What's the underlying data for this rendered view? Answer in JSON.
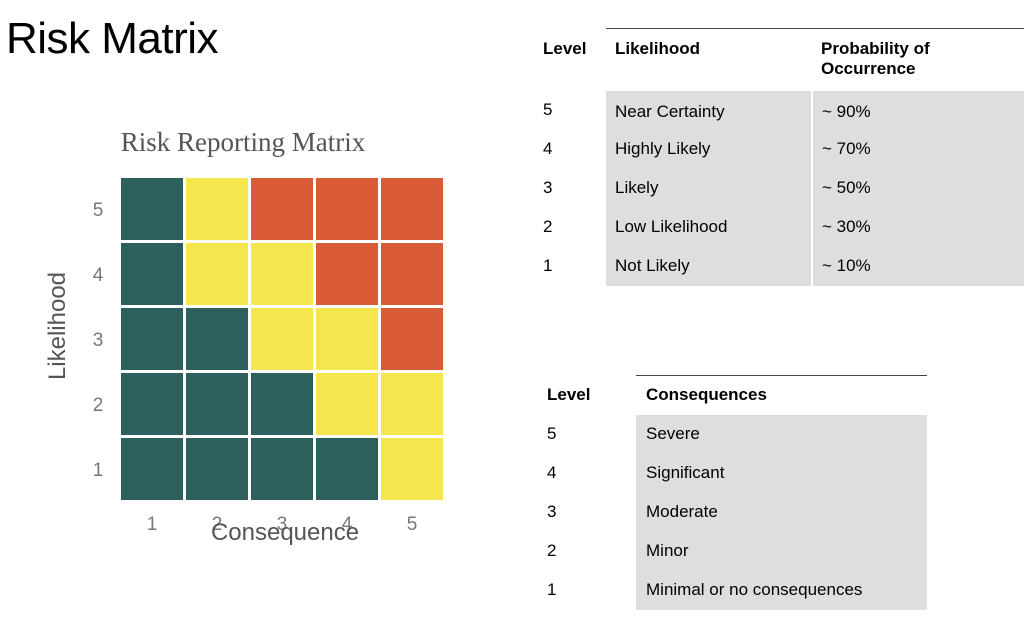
{
  "page": {
    "title": "Risk Matrix"
  },
  "chart_data": {
    "type": "heatmap",
    "title": "Risk Reporting Matrix",
    "xlabel": "Consequence",
    "ylabel": "Likelihood",
    "x_ticks": [
      "1",
      "2",
      "3",
      "4",
      "5"
    ],
    "y_ticks": [
      "1",
      "2",
      "3",
      "4",
      "5"
    ],
    "colors": {
      "green": "#2d5f5d",
      "yellow": "#f5e64e",
      "red": "#d95b35"
    },
    "cells": [
      {
        "likelihood": 5,
        "values": [
          "green",
          "yellow",
          "red",
          "red",
          "red"
        ]
      },
      {
        "likelihood": 4,
        "values": [
          "green",
          "yellow",
          "yellow",
          "red",
          "red"
        ]
      },
      {
        "likelihood": 3,
        "values": [
          "green",
          "green",
          "yellow",
          "yellow",
          "red"
        ]
      },
      {
        "likelihood": 2,
        "values": [
          "green",
          "green",
          "green",
          "yellow",
          "yellow"
        ]
      },
      {
        "likelihood": 1,
        "values": [
          "green",
          "green",
          "green",
          "green",
          "yellow"
        ]
      }
    ]
  },
  "likelihood_table": {
    "headers": [
      "Level",
      "Likelihood",
      "Probability of Occurrence"
    ],
    "rows": [
      {
        "level": "5",
        "name": "Near Certainty",
        "probability": "~ 90%"
      },
      {
        "level": "4",
        "name": "Highly Likely",
        "probability": "~ 70%"
      },
      {
        "level": "3",
        "name": "Likely",
        "probability": "~ 50%"
      },
      {
        "level": "2",
        "name": "Low Likelihood",
        "probability": "~ 30%"
      },
      {
        "level": "1",
        "name": "Not Likely",
        "probability": "~ 10%"
      }
    ]
  },
  "consequence_table": {
    "headers": [
      "Level",
      "Consequences"
    ],
    "rows": [
      {
        "level": "5",
        "name": "Severe"
      },
      {
        "level": "4",
        "name": "Significant"
      },
      {
        "level": "3",
        "name": "Moderate"
      },
      {
        "level": "2",
        "name": "Minor"
      },
      {
        "level": "1",
        "name": "Minimal or no consequences"
      }
    ]
  }
}
